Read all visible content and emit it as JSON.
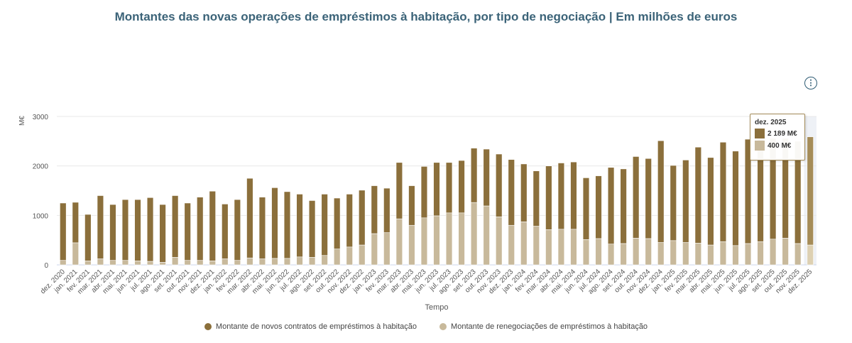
{
  "chart_data": {
    "type": "bar",
    "stacked": true,
    "title": "Montantes das novas operações de empréstimos à habitação, por tipo de negociação | Em milhões de euros",
    "xlabel": "Tempo",
    "ylabel": "M€",
    "ylim": [
      0,
      3000
    ],
    "yticks": [
      "0",
      "1000",
      "2000",
      "3000"
    ],
    "grid": true,
    "legend_position": "bottom",
    "categories": [
      "dez. 2020",
      "jan. 2021",
      "fev. 2021",
      "mar. 2021",
      "abr. 2021",
      "mai. 2021",
      "jun. 2021",
      "jul. 2021",
      "ago. 2021",
      "set. 2021",
      "out. 2021",
      "nov. 2021",
      "dez. 2021",
      "jan. 2022",
      "fev. 2022",
      "mar. 2022",
      "abr. 2022",
      "mai. 2022",
      "jun. 2022",
      "jul. 2022",
      "ago. 2022",
      "set. 2022",
      "out. 2022",
      "nov. 2022",
      "dez. 2022",
      "jan. 2023",
      "fev. 2023",
      "mar. 2023",
      "abr. 2023",
      "mai. 2023",
      "jun. 2023",
      "jul. 2023",
      "ago. 2023",
      "set. 2023",
      "out. 2023",
      "nov. 2023",
      "dez. 2023",
      "jan. 2024",
      "fev. 2024",
      "mar. 2024",
      "abr. 2024",
      "mai. 2024",
      "jun. 2024",
      "jul. 2024",
      "ago. 2024",
      "set. 2024",
      "out. 2024",
      "nov. 2024",
      "dez. 2024",
      "jan. 2025",
      "fev. 2025",
      "mar. 2025",
      "abr. 2025",
      "mai. 2025",
      "jun. 2025",
      "jul. 2025",
      "ago. 2025",
      "set. 2025",
      "out. 2025",
      "nov. 2025",
      "dez. 2025"
    ],
    "series": [
      {
        "name": "Montante de renegociações de empréstimos à habitação",
        "color": "#c8b99b",
        "values": [
          90,
          445,
          80,
          120,
          90,
          90,
          80,
          70,
          50,
          150,
          90,
          90,
          80,
          120,
          90,
          140,
          120,
          130,
          130,
          160,
          150,
          190,
          320,
          360,
          400,
          630,
          650,
          930,
          800,
          950,
          990,
          1050,
          1050,
          1260,
          1190,
          970,
          800,
          870,
          780,
          710,
          720,
          720,
          510,
          530,
          420,
          430,
          540,
          530,
          450,
          490,
          450,
          440,
          400,
          470,
          390,
          430,
          470,
          520,
          540,
          430,
          400
        ]
      },
      {
        "name": "Montante de novos contratos de empréstimos à habitação",
        "color": "#8b6f3b",
        "values": [
          1160,
          820,
          940,
          1280,
          1130,
          1230,
          1240,
          1290,
          1170,
          1250,
          1160,
          1280,
          1410,
          1110,
          1230,
          1610,
          1250,
          1430,
          1350,
          1270,
          1150,
          1240,
          1030,
          1070,
          1110,
          970,
          900,
          1140,
          800,
          1040,
          1080,
          1020,
          1060,
          1100,
          1150,
          1270,
          1330,
          1170,
          1120,
          1290,
          1340,
          1360,
          1250,
          1270,
          1550,
          1510,
          1650,
          1620,
          2060,
          1520,
          1670,
          1940,
          1770,
          2010,
          1910,
          2110,
          2080,
          2040,
          2020,
          2070,
          2189
        ]
      }
    ],
    "tooltip": {
      "header": "dez. 2025",
      "novos": "2 189 M€",
      "renegociacoes": "400 M€"
    }
  },
  "legend": {
    "novos": "Montante de novos contratos de empréstimos à habitação",
    "renegociacoes": "Montante de renegociações de empréstimos à habitação"
  },
  "info_icon": "info-circle-icon"
}
